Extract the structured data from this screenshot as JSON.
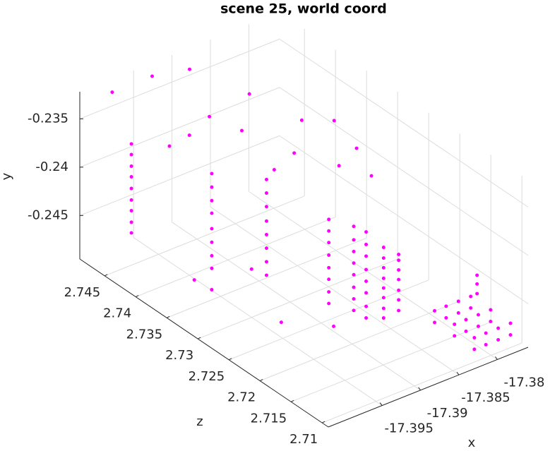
{
  "chart_data": {
    "type": "scatter3",
    "title": "scene 25, world coord",
    "x_label": "x",
    "y_label": "y",
    "z_label": "z",
    "color": "#ff00ff",
    "grid": true,
    "xlim": [
      -17.402,
      -17.376
    ],
    "ylim": [
      -0.2495,
      -0.2322
    ],
    "zlim": [
      2.709,
      2.749
    ],
    "xticks": [
      -17.395,
      -17.39,
      -17.385,
      -17.38
    ],
    "yticks": [
      -0.245,
      -0.24,
      -0.235
    ],
    "zticks": [
      2.71,
      2.715,
      2.72,
      2.725,
      2.73,
      2.735,
      2.74,
      2.745
    ],
    "x": [
      -17.4007,
      -17.4007,
      -17.4007,
      -17.4007,
      -17.4007,
      -17.4007,
      -17.4007,
      -17.4007,
      -17.4007,
      -17.3942,
      -17.3942,
      -17.3942,
      -17.3942,
      -17.3942,
      -17.3942,
      -17.3942,
      -17.3942,
      -17.3929,
      -17.3929,
      -17.3929,
      -17.3929,
      -17.3929,
      -17.3929,
      -17.3929,
      -17.3929,
      -17.389,
      -17.389,
      -17.389,
      -17.389,
      -17.389,
      -17.389,
      -17.389,
      -17.389,
      -17.3864,
      -17.3864,
      -17.3864,
      -17.3864,
      -17.3864,
      -17.3864,
      -17.3864,
      -17.3864,
      -17.3877,
      -17.3877,
      -17.3877,
      -17.3877,
      -17.3877,
      -17.3877,
      -17.3877,
      -17.3877,
      -17.3851,
      -17.3851,
      -17.3851,
      -17.3851,
      -17.3851,
      -17.3851,
      -17.3851,
      -17.3851,
      -17.3825,
      -17.3825,
      -17.3825,
      -17.3825,
      -17.3825,
      -17.3825,
      -17.3825,
      -17.3817,
      -17.3817,
      -17.3817,
      -17.3817,
      -17.3817,
      -17.3817,
      -17.3802,
      -17.3802,
      -17.3802,
      -17.3802,
      -17.3802,
      -17.3802,
      -17.3786,
      -17.3786,
      -17.3786,
      -17.3786,
      -17.3786,
      -17.3786,
      -17.377,
      -17.377,
      -17.377,
      -17.377,
      -17.377,
      -17.377,
      -17.3765,
      -17.3765,
      -17.3765,
      -17.3994,
      -17.3942,
      -17.3903,
      -17.3864,
      -17.3812,
      -17.3786,
      -17.3773,
      -17.3916,
      -17.3942,
      -17.3968,
      -17.389,
      -17.3864,
      -17.3838,
      -17.3812,
      -17.3786,
      -17.3968,
      -17.3955,
      -17.3942,
      -17.3916,
      -17.3968
    ],
    "y": [
      -0.2443,
      -0.2432,
      -0.242,
      -0.2409,
      -0.2397,
      -0.2385,
      -0.2374,
      -0.2362,
      -0.2351,
      -0.2479,
      -0.2466,
      -0.2452,
      -0.2438,
      -0.2422,
      -0.2409,
      -0.2395,
      -0.2381,
      -0.2459,
      -0.2445,
      -0.2431,
      -0.2417,
      -0.2403,
      -0.2388,
      -0.2374,
      -0.236,
      -0.2478,
      -0.2466,
      -0.2453,
      -0.2441,
      -0.2428,
      -0.2415,
      -0.2403,
      -0.2391,
      -0.249,
      -0.2478,
      -0.2466,
      -0.2453,
      -0.2441,
      -0.2429,
      -0.2417,
      -0.2403,
      -0.2478,
      -0.2466,
      -0.2452,
      -0.244,
      -0.2428,
      -0.2414,
      -0.2402,
      -0.2389,
      -0.2488,
      -0.2478,
      -0.2467,
      -0.2457,
      -0.2447,
      -0.2436,
      -0.2426,
      -0.2415,
      -0.2492,
      -0.2481,
      -0.2471,
      -0.246,
      -0.245,
      -0.244,
      -0.2434,
      -0.2486,
      -0.2474,
      -0.2486,
      -0.2474,
      -0.2486,
      -0.2474,
      -0.2486,
      -0.2474,
      -0.2486,
      -0.2474,
      -0.2486,
      -0.2474,
      -0.2486,
      -0.2474,
      -0.2486,
      -0.2474,
      -0.2486,
      -0.2474,
      -0.2486,
      -0.2474,
      -0.2486,
      -0.2474,
      -0.2486,
      -0.2474,
      -0.2471,
      -0.2461,
      -0.2452,
      -0.2322,
      -0.2322,
      -0.2322,
      -0.2339,
      -0.2374,
      -0.2374,
      -0.2398,
      -0.2346,
      -0.2357,
      -0.236,
      -0.236,
      -0.24,
      -0.2391,
      -0.2395,
      -0.2405,
      -0.2481,
      -0.249,
      -0.2452,
      -0.2476,
      -0.2464
    ],
    "z": [
      2.7423,
      2.7423,
      2.7423,
      2.7423,
      2.7423,
      2.7423,
      2.7423,
      2.7423,
      2.7423,
      2.7374,
      2.7374,
      2.7374,
      2.7374,
      2.7374,
      2.7374,
      2.7374,
      2.7374,
      2.7302,
      2.7302,
      2.7302,
      2.7302,
      2.7302,
      2.7302,
      2.7302,
      2.7302,
      2.725,
      2.725,
      2.725,
      2.725,
      2.725,
      2.725,
      2.725,
      2.725,
      2.7242,
      2.7242,
      2.7242,
      2.7242,
      2.7242,
      2.7242,
      2.7242,
      2.7242,
      2.7206,
      2.7206,
      2.7206,
      2.7206,
      2.7206,
      2.7206,
      2.7206,
      2.7206,
      2.721,
      2.721,
      2.721,
      2.721,
      2.721,
      2.721,
      2.721,
      2.721,
      2.7218,
      2.7218,
      2.7218,
      2.7218,
      2.7218,
      2.7218,
      2.7218,
      2.717,
      2.717,
      2.7138,
      2.7138,
      2.7106,
      2.7106,
      2.717,
      2.717,
      2.7138,
      2.7138,
      2.7106,
      2.7106,
      2.717,
      2.717,
      2.7138,
      2.7138,
      2.7106,
      2.7106,
      2.717,
      2.717,
      2.7138,
      2.7138,
      2.7106,
      2.7106,
      2.7166,
      2.7166,
      2.7166,
      2.747,
      2.747,
      2.7458,
      2.741,
      2.739,
      2.737,
      2.735,
      2.741,
      2.741,
      2.741,
      2.739,
      2.737,
      2.737,
      2.733,
      2.731,
      2.737,
      2.7358,
      2.731,
      2.721,
      2.723
    ]
  }
}
